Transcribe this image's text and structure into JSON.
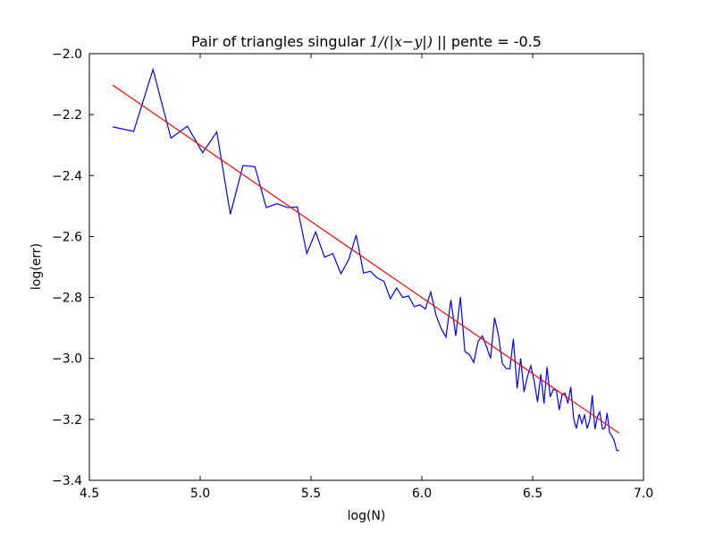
{
  "chart_data": {
    "type": "line",
    "title": {
      "prefix": "Pair of triangles singular ",
      "math": "1/(|x−y|)",
      "suffix": " || pente = -0.5"
    },
    "xlabel": "log(N)",
    "ylabel": "log(err)",
    "xlim": [
      4.5,
      7.0
    ],
    "ylim": [
      -3.4,
      -2.0
    ],
    "xticks": [
      4.5,
      5.0,
      5.5,
      6.0,
      6.5,
      7.0
    ],
    "xtick_labels": [
      "4.5",
      "5.0",
      "5.5",
      "6.0",
      "6.5",
      "7.0"
    ],
    "yticks": [
      -2.0,
      -2.2,
      -2.4,
      -2.6,
      -2.8,
      -3.0,
      -3.2,
      -3.4
    ],
    "ytick_labels": [
      "−2.0",
      "−2.2",
      "−2.4",
      "−2.6",
      "−2.8",
      "−3.0",
      "−3.2",
      "−3.4"
    ],
    "grid": false,
    "series": [
      {
        "color": "#0000ff",
        "x": [
          4.605,
          4.7,
          4.787,
          4.868,
          4.942,
          5.011,
          5.075,
          5.136,
          5.193,
          5.247,
          5.298,
          5.347,
          5.394,
          5.438,
          5.481,
          5.521,
          5.561,
          5.598,
          5.635,
          5.67,
          5.704,
          5.737,
          5.768,
          5.799,
          5.829,
          5.858,
          5.886,
          5.914,
          5.94,
          5.966,
          5.991,
          6.016,
          6.04,
          6.064,
          6.087,
          6.109,
          6.131,
          6.153,
          6.174,
          6.194,
          6.215,
          6.234,
          6.254,
          6.273,
          6.292,
          6.31,
          6.328,
          6.346,
          6.363,
          6.38,
          6.397,
          6.413,
          6.43,
          6.446,
          6.461,
          6.477,
          6.492,
          6.507,
          6.522,
          6.537,
          6.551,
          6.565,
          6.579,
          6.593,
          6.607,
          6.62,
          6.633,
          6.646,
          6.659,
          6.672,
          6.685,
          6.697,
          6.71,
          6.722,
          6.734,
          6.746,
          6.758,
          6.769,
          6.781,
          6.792,
          6.803,
          6.815,
          6.826,
          6.836,
          6.847,
          6.858,
          6.868,
          6.879,
          6.89
        ],
        "y": [
          -2.24,
          -2.255,
          -2.052,
          -2.277,
          -2.238,
          -2.325,
          -2.257,
          -2.527,
          -2.367,
          -2.371,
          -2.505,
          -2.492,
          -2.505,
          -2.503,
          -2.656,
          -2.585,
          -2.668,
          -2.656,
          -2.722,
          -2.676,
          -2.595,
          -2.72,
          -2.714,
          -2.736,
          -2.747,
          -2.804,
          -2.769,
          -2.8,
          -2.795,
          -2.83,
          -2.824,
          -2.838,
          -2.782,
          -2.858,
          -2.902,
          -2.93,
          -2.808,
          -2.926,
          -2.799,
          -2.977,
          -2.987,
          -3.013,
          -2.944,
          -2.926,
          -2.962,
          -3.0,
          -2.866,
          -2.924,
          -3.016,
          -3.033,
          -3.034,
          -2.936,
          -3.098,
          -3.0,
          -3.11,
          -3.057,
          -3.024,
          -3.076,
          -3.143,
          -3.052,
          -3.148,
          -3.028,
          -3.126,
          -3.102,
          -3.104,
          -3.169,
          -3.117,
          -3.114,
          -3.148,
          -3.094,
          -3.198,
          -3.23,
          -3.183,
          -3.213,
          -3.186,
          -3.23,
          -3.2,
          -3.121,
          -3.232,
          -3.191,
          -3.176,
          -3.232,
          -3.228,
          -3.179,
          -3.243,
          -3.254,
          -3.27,
          -3.302,
          -3.303
        ]
      },
      {
        "color": "#ff0000",
        "x": [
          4.605,
          6.89
        ],
        "y": [
          -2.103,
          -3.245
        ]
      }
    ]
  }
}
